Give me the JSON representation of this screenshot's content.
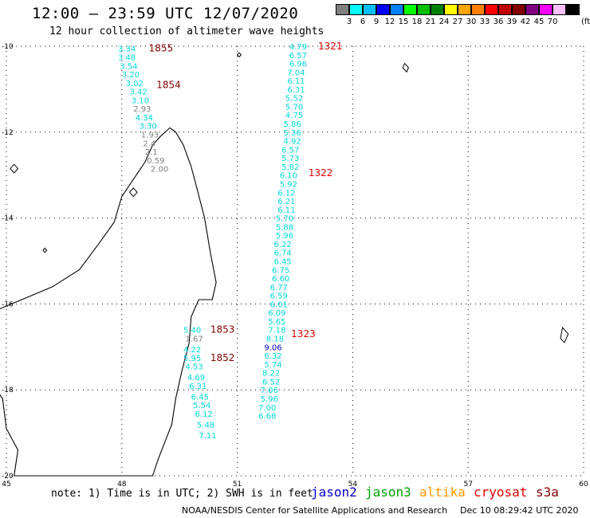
{
  "header": {
    "title": "12:00 – 23:59 UTC 12/07/2020",
    "subtitle": "12 hour collection of altimeter wave heights"
  },
  "colorbar": {
    "unit_label": "(ft)",
    "colors": [
      "#808080",
      "#00ffff",
      "#00bfff",
      "#0000ff",
      "#0080ff",
      "#00ff00",
      "#00c000",
      "#008000",
      "#ffff00",
      "#ffa500",
      "#ff8000",
      "#ff0000",
      "#c00000",
      "#800000",
      "#800080",
      "#ff00ff",
      "#ffc0ff",
      "#000000"
    ],
    "labels": [
      "3",
      "6",
      "9",
      "12",
      "15",
      "18",
      "21",
      "24",
      "27",
      "30",
      "33",
      "36",
      "39",
      "42",
      "45",
      "70"
    ]
  },
  "map": {
    "lon_range": [
      45,
      60
    ],
    "lat_range": [
      -20,
      -10
    ],
    "lon_ticks": [
      "45",
      "48",
      "51",
      "54",
      "57",
      "60"
    ],
    "lat_ticks": [
      "-10",
      "-12",
      "-14",
      "-16",
      "-18",
      "-20"
    ],
    "grid": "dotted",
    "track_colors": {
      "cyan": "#00d8d8",
      "gray": "#808080",
      "blue": "#0000cc",
      "dark_red": "#800000",
      "red": "#e00000"
    },
    "tracks": [
      {
        "satellite": "altika",
        "time_labels": [
          {
            "text": "1855",
            "lon": 48.7,
            "lat": -10.05,
            "color": "dark_red"
          },
          {
            "text": "1854",
            "lon": 48.9,
            "lat": -10.9,
            "color": "dark_red"
          }
        ],
        "values": [
          {
            "v": "3.34",
            "lon": 47.9,
            "lat": -10.05,
            "c": "cyan"
          },
          {
            "v": "3.48",
            "lon": 47.9,
            "lat": -10.25,
            "c": "cyan"
          },
          {
            "v": "3.54",
            "lon": 47.95,
            "lat": -10.45,
            "c": "cyan"
          },
          {
            "v": "3.20",
            "lon": 48.0,
            "lat": -10.65,
            "c": "cyan"
          },
          {
            "v": "3.02",
            "lon": 48.1,
            "lat": -10.85,
            "c": "cyan"
          },
          {
            "v": "3.42",
            "lon": 48.2,
            "lat": -11.05,
            "c": "cyan"
          },
          {
            "v": "3.10",
            "lon": 48.25,
            "lat": -11.25,
            "c": "cyan"
          },
          {
            "v": "2.93",
            "lon": 48.3,
            "lat": -11.45,
            "c": "gray"
          },
          {
            "v": "4.34",
            "lon": 48.35,
            "lat": -11.65,
            "c": "cyan"
          },
          {
            "v": "3.30",
            "lon": 48.45,
            "lat": -11.85,
            "c": "cyan"
          },
          {
            "v": "1.93",
            "lon": 48.5,
            "lat": -12.05,
            "c": "gray"
          },
          {
            "v": "2.4",
            "lon": 48.55,
            "lat": -12.25,
            "c": "gray"
          },
          {
            "v": "2.1",
            "lon": 48.6,
            "lat": -12.45,
            "c": "gray"
          },
          {
            "v": "0.59",
            "lon": 48.65,
            "lat": -12.65,
            "c": "gray"
          },
          {
            "v": "2.00",
            "lon": 48.75,
            "lat": -12.85,
            "c": "gray"
          }
        ]
      },
      {
        "satellite": "cryosat",
        "time_labels": [
          {
            "text": "1321",
            "lon": 53.1,
            "lat": -10.0,
            "color": "red"
          },
          {
            "text": "1322",
            "lon": 52.85,
            "lat": -12.95,
            "color": "red"
          },
          {
            "text": "1323",
            "lon": 52.4,
            "lat": -16.7,
            "color": "red"
          }
        ],
        "values": [
          {
            "v": "4.79",
            "lon": 52.35,
            "lat": -10.0,
            "c": "cyan"
          },
          {
            "v": "6.57",
            "lon": 52.35,
            "lat": -10.2,
            "c": "cyan"
          },
          {
            "v": "6.96",
            "lon": 52.35,
            "lat": -10.4,
            "c": "cyan"
          },
          {
            "v": "7.04",
            "lon": 52.3,
            "lat": -10.6,
            "c": "cyan"
          },
          {
            "v": "6.11",
            "lon": 52.3,
            "lat": -10.8,
            "c": "cyan"
          },
          {
            "v": "6.31",
            "lon": 52.3,
            "lat": -11.0,
            "c": "cyan"
          },
          {
            "v": "5.52",
            "lon": 52.25,
            "lat": -11.2,
            "c": "cyan"
          },
          {
            "v": "5.70",
            "lon": 52.25,
            "lat": -11.4,
            "c": "cyan"
          },
          {
            "v": "4.75",
            "lon": 52.25,
            "lat": -11.6,
            "c": "cyan"
          },
          {
            "v": "5.86",
            "lon": 52.2,
            "lat": -11.8,
            "c": "cyan"
          },
          {
            "v": "5.36",
            "lon": 52.2,
            "lat": -12.0,
            "c": "cyan"
          },
          {
            "v": "4.92",
            "lon": 52.2,
            "lat": -12.2,
            "c": "cyan"
          },
          {
            "v": "6.57",
            "lon": 52.15,
            "lat": -12.4,
            "c": "cyan"
          },
          {
            "v": "5.73",
            "lon": 52.15,
            "lat": -12.6,
            "c": "cyan"
          },
          {
            "v": "5.82",
            "lon": 52.15,
            "lat": -12.8,
            "c": "cyan"
          },
          {
            "v": "6.10",
            "lon": 52.1,
            "lat": -13.0,
            "c": "cyan"
          },
          {
            "v": "5.92",
            "lon": 52.1,
            "lat": -13.2,
            "c": "cyan"
          },
          {
            "v": "6.12",
            "lon": 52.05,
            "lat": -13.4,
            "c": "cyan"
          },
          {
            "v": "6.21",
            "lon": 52.05,
            "lat": -13.6,
            "c": "cyan"
          },
          {
            "v": "6.11",
            "lon": 52.05,
            "lat": -13.8,
            "c": "cyan"
          },
          {
            "v": "5.70",
            "lon": 52.0,
            "lat": -14.0,
            "c": "cyan"
          },
          {
            "v": "5.88",
            "lon": 52.0,
            "lat": -14.2,
            "c": "cyan"
          },
          {
            "v": "5.96",
            "lon": 52.0,
            "lat": -14.4,
            "c": "cyan"
          },
          {
            "v": "6.22",
            "lon": 51.95,
            "lat": -14.6,
            "c": "cyan"
          },
          {
            "v": "6.74",
            "lon": 51.95,
            "lat": -14.8,
            "c": "cyan"
          },
          {
            "v": "6.45",
            "lon": 51.95,
            "lat": -15.0,
            "c": "cyan"
          },
          {
            "v": "6.75",
            "lon": 51.9,
            "lat": -15.2,
            "c": "cyan"
          },
          {
            "v": "6.60",
            "lon": 51.9,
            "lat": -15.4,
            "c": "cyan"
          },
          {
            "v": "6.77",
            "lon": 51.85,
            "lat": -15.6,
            "c": "cyan"
          },
          {
            "v": "6.59",
            "lon": 51.85,
            "lat": -15.8,
            "c": "cyan"
          },
          {
            "v": "6.01",
            "lon": 51.85,
            "lat": -16.0,
            "c": "cyan"
          },
          {
            "v": "6.09",
            "lon": 51.8,
            "lat": -16.2,
            "c": "cyan"
          },
          {
            "v": "5.65",
            "lon": 51.8,
            "lat": -16.4,
            "c": "cyan"
          },
          {
            "v": "7.18",
            "lon": 51.8,
            "lat": -16.6,
            "c": "cyan"
          },
          {
            "v": "8.18",
            "lon": 51.75,
            "lat": -16.8,
            "c": "cyan"
          },
          {
            "v": "9.06",
            "lon": 51.7,
            "lat": -17.0,
            "c": "blue"
          },
          {
            "v": "6.32",
            "lon": 51.7,
            "lat": -17.2,
            "c": "cyan"
          },
          {
            "v": "5.74",
            "lon": 51.7,
            "lat": -17.4,
            "c": "cyan"
          },
          {
            "v": "8.22",
            "lon": 51.65,
            "lat": -17.6,
            "c": "cyan"
          },
          {
            "v": "6.52",
            "lon": 51.65,
            "lat": -17.8,
            "c": "cyan"
          },
          {
            "v": "7.06",
            "lon": 51.6,
            "lat": -18.0,
            "c": "cyan"
          },
          {
            "v": "5.96",
            "lon": 51.6,
            "lat": -18.2,
            "c": "cyan"
          },
          {
            "v": "7.00",
            "lon": 51.55,
            "lat": -18.4,
            "c": "cyan"
          },
          {
            "v": "6.68",
            "lon": 51.55,
            "lat": -18.6,
            "c": "cyan"
          }
        ]
      },
      {
        "satellite": "altika",
        "time_labels": [
          {
            "text": "1853",
            "lon": 50.3,
            "lat": -16.6,
            "color": "dark_red"
          },
          {
            "text": "1852",
            "lon": 50.3,
            "lat": -17.25,
            "color": "dark_red"
          }
        ],
        "values": [
          {
            "v": "5.40",
            "lon": 49.6,
            "lat": -16.6,
            "c": "cyan"
          },
          {
            "v": "1.67",
            "lon": 49.65,
            "lat": -16.8,
            "c": "gray"
          },
          {
            "v": "4.22",
            "lon": 49.6,
            "lat": -17.05,
            "c": "cyan"
          },
          {
            "v": "5.95",
            "lon": 49.6,
            "lat": -17.25,
            "c": "cyan"
          },
          {
            "v": "4.53",
            "lon": 49.65,
            "lat": -17.45,
            "c": "cyan"
          },
          {
            "v": "4.69",
            "lon": 49.7,
            "lat": -17.7,
            "c": "cyan"
          },
          {
            "v": "6.31",
            "lon": 49.75,
            "lat": -17.9,
            "c": "cyan"
          },
          {
            "v": "6.45",
            "lon": 49.8,
            "lat": -18.15,
            "c": "cyan"
          },
          {
            "v": "5.54",
            "lon": 49.85,
            "lat": -18.35,
            "c": "cyan"
          },
          {
            "v": "6.12",
            "lon": 49.9,
            "lat": -18.55,
            "c": "cyan"
          },
          {
            "v": "5.48",
            "lon": 49.95,
            "lat": -18.8,
            "c": "cyan"
          },
          {
            "v": "7.11",
            "lon": 50.0,
            "lat": -19.05,
            "c": "cyan"
          }
        ]
      }
    ]
  },
  "footer": {
    "note": "note: 1) Time is in UTC; 2) SWH is in feet",
    "legend": [
      {
        "name": "jason2",
        "color": "#0000cc"
      },
      {
        "name": "jason3",
        "color": "#00a000"
      },
      {
        "name": "altika",
        "color": "#ff9900"
      },
      {
        "name": "cryosat",
        "color": "#e00000"
      },
      {
        "name": "s3a",
        "color": "#800000"
      }
    ],
    "credit": "NOAA/NESDIS Center for Satellite Applications and Research",
    "timestamp": "Dec 10 08:29:42 UTC 2020"
  }
}
